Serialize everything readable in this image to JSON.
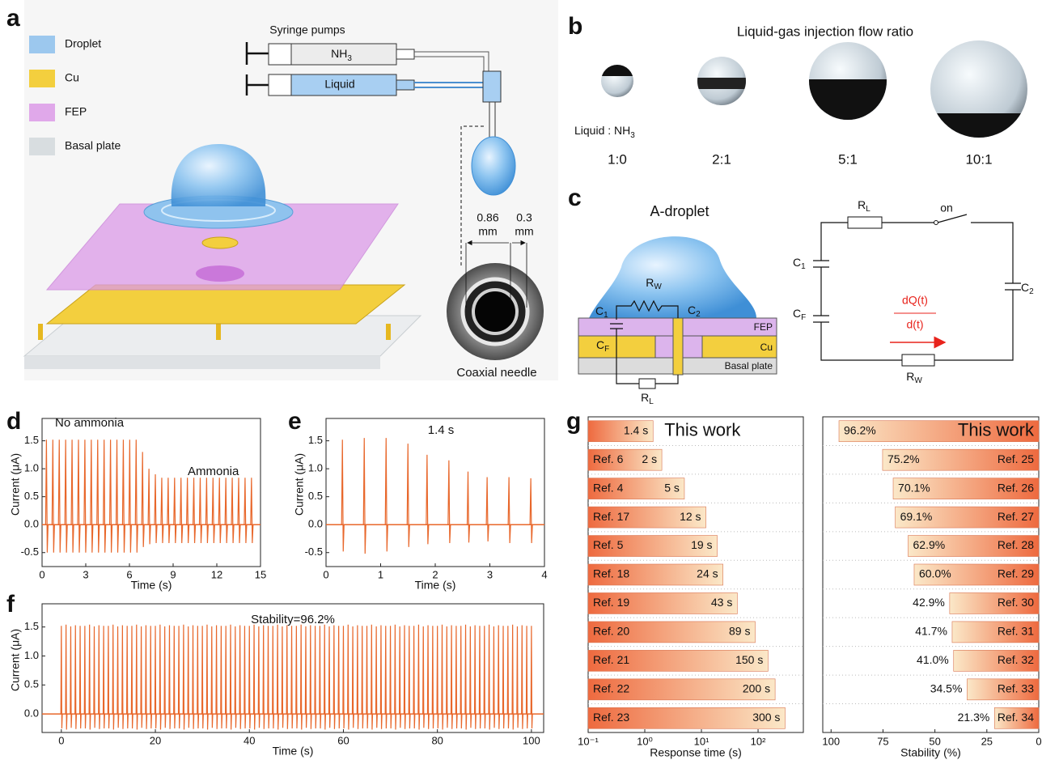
{
  "panel_labels": [
    "a",
    "b",
    "c",
    "d",
    "e",
    "f",
    "g"
  ],
  "panel_a": {
    "legend": [
      "Droplet",
      "Cu",
      "FEP",
      "Basal plate"
    ],
    "pumps_title": "Syringe pumps",
    "gas": {
      "base": "NH",
      "sub": "3"
    },
    "liquid": "Liquid",
    "inner_dim": {
      "value": "0.86",
      "unit": "mm"
    },
    "wall_dim": {
      "value": "0.3",
      "unit": "mm"
    },
    "needle_caption": "Coaxial needle"
  },
  "panel_b": {
    "title": "Liquid-gas injection flow ratio",
    "ratio_label": {
      "base": "Liquid : NH",
      "sub": "3"
    },
    "ratios": [
      "1:0",
      "2:1",
      "5:1",
      "10:1"
    ]
  },
  "panel_c": {
    "title": "A-droplet",
    "device": {
      "r_w": {
        "base": "R",
        "sub": "W"
      },
      "c_1": {
        "base": "C",
        "sub": "1"
      },
      "c_2": {
        "base": "C",
        "sub": "2"
      },
      "c_f": {
        "base": "C",
        "sub": "F"
      },
      "fep": "FEP",
      "cu": "Cu",
      "basal": "Basal plate",
      "r_l": {
        "base": "R",
        "sub": "L"
      }
    },
    "circuit": {
      "r_l": {
        "base": "R",
        "sub": "L"
      },
      "switch": "on",
      "c_1": {
        "base": "C",
        "sub": "1"
      },
      "c_f": {
        "base": "C",
        "sub": "F"
      },
      "c_2": {
        "base": "C",
        "sub": "2"
      },
      "current_top": "dQ(t)",
      "current_bottom": "d(t)",
      "r_w": {
        "base": "R",
        "sub": "W"
      }
    }
  },
  "chart_data": [
    {
      "type": "spike",
      "color": "#e8672b",
      "x": [
        0.3,
        0.74,
        1.18,
        1.62,
        2.06,
        2.5,
        2.94,
        3.38,
        3.82,
        4.26,
        4.7,
        5.14,
        5.58,
        6.02,
        6.46,
        6.9,
        7.34,
        7.78,
        8.22,
        8.66,
        9.1,
        9.54,
        9.98,
        10.42,
        10.86,
        11.3,
        11.74,
        12.18,
        12.62,
        13.06,
        13.5,
        13.94,
        14.38
      ],
      "values": [
        1.52,
        1.52,
        1.52,
        1.52,
        1.52,
        1.52,
        1.52,
        1.52,
        1.52,
        1.52,
        1.52,
        1.52,
        1.52,
        1.52,
        1.52,
        1.3,
        1.0,
        0.9,
        0.84,
        0.84,
        0.84,
        0.84,
        0.84,
        0.84,
        0.84,
        0.84,
        0.84,
        0.84,
        0.84,
        0.84,
        0.84,
        0.84,
        0.84
      ],
      "neg_values": [
        -0.5,
        -0.5,
        -0.5,
        -0.5,
        -0.5,
        -0.5,
        -0.5,
        -0.5,
        -0.5,
        -0.5,
        -0.5,
        -0.5,
        -0.5,
        -0.5,
        -0.5,
        -0.4,
        -0.35,
        -0.33,
        -0.33,
        -0.33,
        -0.33,
        -0.33,
        -0.33,
        -0.33,
        -0.33,
        -0.33,
        -0.33,
        -0.33,
        -0.33,
        -0.33,
        -0.33,
        -0.33,
        -0.33
      ],
      "xlim": [
        0,
        15
      ],
      "xticks": [
        0,
        3,
        6,
        9,
        12,
        15
      ],
      "ylim": [
        -0.75,
        1.9
      ],
      "yticks": [
        -0.5,
        {
          "value": 0,
          "label": "0.0"
        },
        0.5,
        {
          "value": 1,
          "label": "1.0"
        },
        1.5
      ],
      "xlabel": "Time (s)",
      "ylabel": "Current (μA)",
      "annotations": [
        "No ammonia",
        "Ammonia"
      ]
    },
    {
      "type": "spike",
      "color": "#e8672b",
      "x": [
        0.3,
        0.7,
        1.1,
        1.5,
        1.85,
        2.25,
        2.6,
        2.95,
        3.35,
        3.75
      ],
      "values": [
        1.52,
        1.55,
        1.55,
        1.45,
        1.25,
        1.15,
        0.95,
        0.85,
        0.85,
        0.83
      ],
      "neg_values": [
        -0.48,
        -0.52,
        -0.48,
        -0.4,
        -0.35,
        -0.33,
        -0.32,
        -0.3,
        -0.33,
        -0.33
      ],
      "xlim": [
        0,
        4
      ],
      "xticks": [
        0,
        1,
        2,
        3,
        4
      ],
      "ylim": [
        -0.75,
        1.9
      ],
      "yticks": [
        -0.5,
        {
          "value": 0,
          "label": "0.0"
        },
        0.5,
        {
          "value": 1,
          "label": "1.0"
        },
        1.5
      ],
      "xlabel": "Time (s)",
      "ylabel": "Current (μA)",
      "annotations": [
        "1.4 s"
      ]
    },
    {
      "type": "spike",
      "color": "#e8672b",
      "x": [
        0,
        1,
        2,
        3,
        4,
        5,
        6,
        7,
        8,
        9,
        10,
        11,
        12,
        13,
        14,
        15,
        16,
        17,
        18,
        19,
        20,
        21,
        22,
        23,
        24,
        25,
        26,
        27,
        28,
        29,
        30,
        31,
        32,
        33,
        34,
        35,
        36,
        37,
        38,
        39,
        40,
        41,
        42,
        43,
        44,
        45,
        46,
        47,
        48,
        49,
        50,
        51,
        52,
        53,
        54,
        55,
        56,
        57,
        58,
        59,
        60,
        61,
        62,
        63,
        64,
        65,
        66,
        67,
        68,
        69,
        70,
        71,
        72,
        73,
        74,
        75,
        76,
        77,
        78,
        79,
        80,
        81,
        82,
        83,
        84,
        85,
        86,
        87,
        88,
        89,
        90,
        91,
        92,
        93,
        94,
        95,
        96,
        97,
        98,
        99,
        100
      ],
      "values": [
        1.52,
        1.54,
        1.51,
        1.53,
        1.52,
        1.52,
        1.54,
        1.51,
        1.53,
        1.52,
        1.52,
        1.54,
        1.51,
        1.53,
        1.52,
        1.52,
        1.54,
        1.51,
        1.53,
        1.52,
        1.52,
        1.54,
        1.51,
        1.53,
        1.52,
        1.52,
        1.54,
        1.51,
        1.53,
        1.52,
        1.52,
        1.54,
        1.51,
        1.53,
        1.52,
        1.52,
        1.54,
        1.51,
        1.53,
        1.52,
        1.52,
        1.54,
        1.51,
        1.53,
        1.52,
        1.52,
        1.54,
        1.51,
        1.53,
        1.52,
        1.52,
        1.54,
        1.51,
        1.53,
        1.52,
        1.52,
        1.54,
        1.51,
        1.53,
        1.52,
        1.52,
        1.54,
        1.51,
        1.53,
        1.52,
        1.52,
        1.54,
        1.51,
        1.53,
        1.52,
        1.52,
        1.54,
        1.51,
        1.53,
        1.52,
        1.52,
        1.54,
        1.51,
        1.53,
        1.52,
        1.52,
        1.54,
        1.51,
        1.53,
        1.52,
        1.52,
        1.54,
        1.51,
        1.53,
        1.52,
        1.52,
        1.54,
        1.51,
        1.53,
        1.52,
        1.52,
        1.54,
        1.51,
        1.53,
        1.52,
        1.52
      ],
      "neg_values": [
        -0.25,
        -0.27,
        -0.24,
        -0.26,
        -0.25,
        -0.25,
        -0.27,
        -0.24,
        -0.26,
        -0.25,
        -0.25,
        -0.27,
        -0.24,
        -0.26,
        -0.25,
        -0.25,
        -0.27,
        -0.24,
        -0.26,
        -0.25,
        -0.25,
        -0.27,
        -0.24,
        -0.26,
        -0.25,
        -0.25,
        -0.27,
        -0.24,
        -0.26,
        -0.25,
        -0.25,
        -0.27,
        -0.24,
        -0.26,
        -0.25,
        -0.25,
        -0.27,
        -0.24,
        -0.26,
        -0.25,
        -0.25,
        -0.27,
        -0.24,
        -0.26,
        -0.25,
        -0.25,
        -0.27,
        -0.24,
        -0.26,
        -0.25,
        -0.25,
        -0.27,
        -0.24,
        -0.26,
        -0.25,
        -0.25,
        -0.27,
        -0.24,
        -0.26,
        -0.25,
        -0.25,
        -0.27,
        -0.24,
        -0.26,
        -0.25,
        -0.25,
        -0.27,
        -0.24,
        -0.26,
        -0.25,
        -0.25,
        -0.27,
        -0.24,
        -0.26,
        -0.25,
        -0.25,
        -0.27,
        -0.24,
        -0.26,
        -0.25,
        -0.25,
        -0.27,
        -0.24,
        -0.26,
        -0.25,
        -0.25,
        -0.27,
        -0.24,
        -0.26,
        -0.25,
        -0.25,
        -0.27,
        -0.24,
        -0.26,
        -0.25,
        -0.25,
        -0.27,
        -0.24,
        -0.26,
        -0.25,
        -0.25
      ],
      "xlim": [
        -4.1,
        102.6
      ],
      "xticks": [
        0,
        20,
        40,
        60,
        80,
        100
      ],
      "ylim": [
        -0.32,
        1.9
      ],
      "yticks": [
        {
          "value": 0,
          "label": "0.0"
        },
        0.5,
        {
          "value": 1,
          "label": "1.0"
        },
        1.5
      ],
      "xlabel": "Time (s)",
      "ylabel": "Current (μA)",
      "annotations": [
        "Stability=96.2%"
      ]
    },
    {
      "type": "hbar",
      "xscale": "log",
      "colors": [
        "#ee6a3f",
        "#fbe8c8"
      ],
      "categories": [
        "This work",
        "Ref. 6",
        "Ref. 4",
        "Ref. 17",
        "Ref. 5",
        "Ref. 18",
        "Ref. 19",
        "Ref. 20",
        "Ref. 21",
        "Ref. 22",
        "Ref. 23"
      ],
      "values": [
        1.4,
        2,
        5,
        12,
        19,
        24,
        43,
        89,
        150,
        200,
        300
      ],
      "value_labels": [
        "1.4 s",
        "2 s",
        "5 s",
        "12 s",
        "19 s",
        "24 s",
        "43 s",
        "89 s",
        "150 s",
        "200 s",
        "300 s"
      ],
      "xlim": [
        0.1,
        630
      ],
      "xticks": [
        {
          "value": 0.1,
          "label": "10⁻¹"
        },
        {
          "value": 1,
          "label": "10⁰"
        },
        {
          "value": 10,
          "label": "10¹"
        },
        {
          "value": 100,
          "label": "10²"
        }
      ],
      "xlabel": "Response time (s)"
    },
    {
      "type": "hbar",
      "colors": [
        "#ee6a3f",
        "#fbe8c8"
      ],
      "categories": [
        "This work",
        "Ref. 25",
        "Ref. 26",
        "Ref. 27",
        "Ref. 28",
        "Ref. 29",
        "Ref. 30",
        "Ref. 31",
        "Ref. 32",
        "Ref. 33",
        "Ref. 34"
      ],
      "values": [
        96.2,
        75.2,
        70.1,
        69.1,
        62.9,
        60.0,
        42.9,
        41.7,
        41.0,
        34.5,
        21.3
      ],
      "value_labels": [
        "96.2%",
        "75.2%",
        "70.1%",
        "69.1%",
        "62.9%",
        "60.0%",
        "42.9%",
        "41.7%",
        "41.0%",
        "34.5%",
        "21.3%"
      ],
      "xlim": [
        104,
        0
      ],
      "xticks": [
        100,
        75,
        50,
        25,
        0
      ],
      "xlabel": "Stability (%)"
    }
  ]
}
